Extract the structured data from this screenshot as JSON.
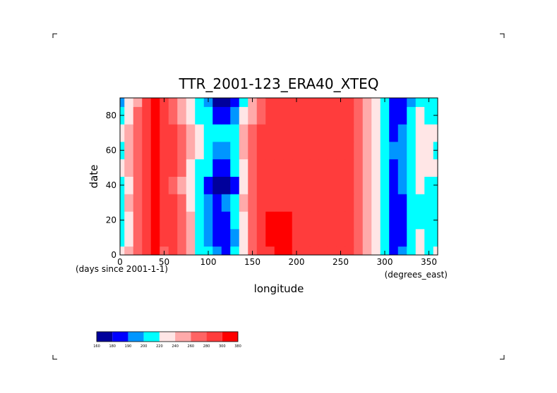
{
  "chart_data": {
    "type": "heatmap",
    "title": "TTR_2001-123_ERA40_XTEQ",
    "xlabel": "longitude",
    "ylabel": "date",
    "x_units": "(degrees_east)",
    "y_units": "(days since 2001-1-1)",
    "xlim": [
      0,
      360
    ],
    "ylim": [
      0,
      90
    ],
    "x_ticks": [
      0,
      50,
      100,
      150,
      200,
      250,
      300,
      350
    ],
    "y_ticks": [
      0,
      20,
      40,
      60,
      80
    ],
    "grid": false,
    "colorbar": {
      "levels": [
        "160",
        "180",
        "190",
        "200",
        "220",
        "240",
        "260",
        "280",
        "300",
        "380"
      ],
      "colors": [
        "#00009b",
        "#0000ff",
        "#0096ff",
        "#00ffff",
        "#ffe6e6",
        "#ffaaaa",
        "#ff6464",
        "#ff3c3c",
        "#ff0000"
      ]
    },
    "x": [
      0,
      10,
      20,
      30,
      40,
      50,
      60,
      70,
      80,
      90,
      100,
      110,
      120,
      130,
      140,
      150,
      160,
      170,
      180,
      190,
      200,
      210,
      220,
      230,
      240,
      250,
      260,
      270,
      280,
      290,
      300,
      310,
      320,
      330,
      340,
      350,
      360
    ],
    "y": [
      0,
      10,
      20,
      30,
      40,
      50,
      60,
      70,
      80,
      90
    ],
    "z": [
      [
        220,
        240,
        260,
        280,
        300,
        270,
        280,
        270,
        240,
        210,
        200,
        190,
        180,
        200,
        230,
        260,
        280,
        290,
        300,
        300,
        280,
        280,
        280,
        280,
        280,
        280,
        280,
        260,
        240,
        220,
        200,
        180,
        190,
        200,
        220,
        210,
        220
      ],
      [
        210,
        230,
        260,
        280,
        300,
        280,
        280,
        270,
        240,
        210,
        195,
        185,
        180,
        195,
        230,
        260,
        280,
        300,
        300,
        300,
        285,
        280,
        280,
        280,
        280,
        280,
        280,
        260,
        240,
        220,
        200,
        180,
        185,
        205,
        220,
        215,
        215
      ],
      [
        200,
        230,
        260,
        280,
        300,
        280,
        280,
        270,
        240,
        210,
        190,
        180,
        185,
        200,
        230,
        260,
        290,
        300,
        300,
        300,
        290,
        280,
        280,
        280,
        280,
        280,
        280,
        260,
        240,
        220,
        200,
        180,
        180,
        200,
        210,
        205,
        210
      ],
      [
        210,
        240,
        260,
        280,
        300,
        280,
        280,
        260,
        230,
        200,
        190,
        180,
        190,
        210,
        240,
        270,
        280,
        280,
        280,
        280,
        280,
        280,
        280,
        280,
        280,
        280,
        280,
        260,
        240,
        220,
        200,
        180,
        185,
        200,
        215,
        210,
        210
      ],
      [
        200,
        230,
        260,
        280,
        300,
        280,
        270,
        250,
        220,
        200,
        180,
        170,
        170,
        185,
        220,
        260,
        280,
        280,
        280,
        280,
        280,
        280,
        280,
        280,
        280,
        280,
        280,
        260,
        240,
        220,
        200,
        180,
        190,
        205,
        220,
        215,
        205
      ],
      [
        220,
        250,
        260,
        280,
        300,
        280,
        280,
        260,
        230,
        210,
        200,
        185,
        180,
        200,
        230,
        260,
        280,
        280,
        280,
        280,
        280,
        280,
        280,
        280,
        280,
        280,
        280,
        260,
        240,
        220,
        200,
        185,
        190,
        210,
        220,
        220,
        220
      ],
      [
        210,
        240,
        260,
        280,
        300,
        280,
        280,
        270,
        240,
        220,
        205,
        195,
        195,
        210,
        240,
        265,
        280,
        280,
        280,
        280,
        280,
        280,
        280,
        280,
        280,
        280,
        280,
        260,
        240,
        220,
        205,
        190,
        195,
        210,
        225,
        220,
        215
      ],
      [
        230,
        250,
        260,
        280,
        300,
        280,
        280,
        270,
        250,
        230,
        210,
        200,
        200,
        215,
        240,
        265,
        280,
        280,
        280,
        280,
        280,
        280,
        280,
        280,
        280,
        280,
        280,
        260,
        240,
        220,
        200,
        185,
        190,
        205,
        220,
        220,
        225
      ],
      [
        200,
        230,
        260,
        280,
        300,
        280,
        270,
        250,
        230,
        215,
        200,
        185,
        180,
        190,
        220,
        250,
        275,
        280,
        280,
        280,
        280,
        280,
        280,
        280,
        280,
        280,
        280,
        260,
        240,
        220,
        200,
        180,
        185,
        200,
        220,
        215,
        205
      ],
      [
        190,
        220,
        250,
        280,
        300,
        280,
        260,
        240,
        220,
        200,
        190,
        175,
        170,
        185,
        210,
        240,
        270,
        280,
        280,
        280,
        280,
        280,
        280,
        280,
        280,
        280,
        280,
        260,
        240,
        220,
        200,
        180,
        180,
        195,
        215,
        210,
        200
      ]
    ]
  }
}
